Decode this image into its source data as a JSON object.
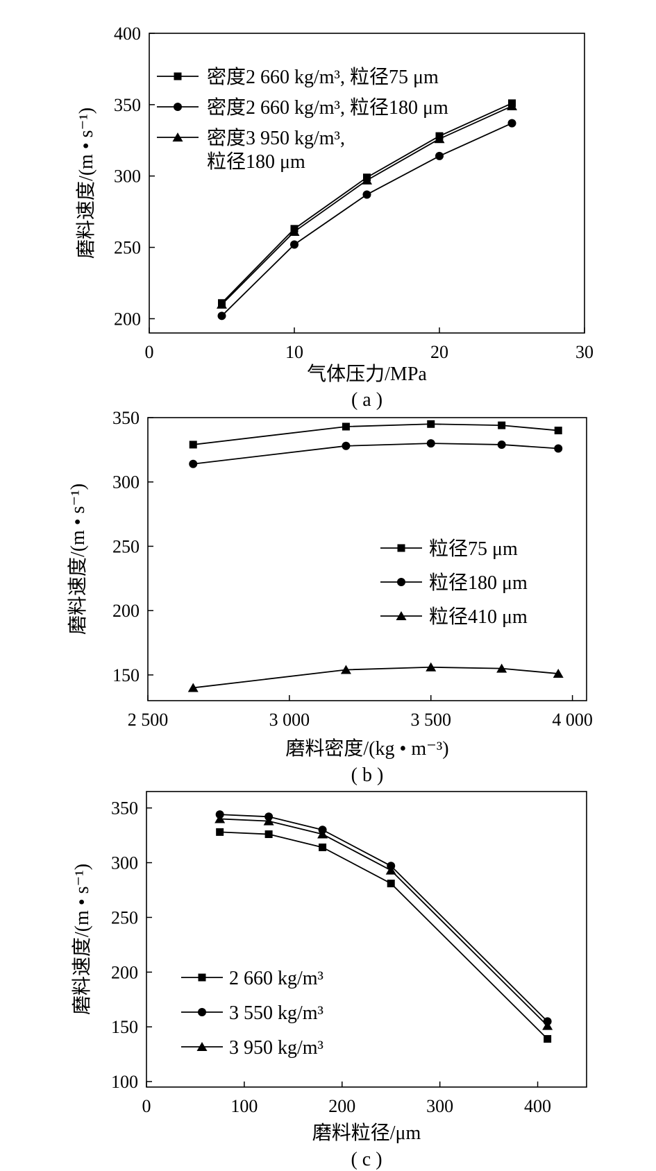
{
  "chart_data": [
    {
      "type": "line",
      "panel_label": "( a )",
      "xlabel": "气体压力/MPa",
      "ylabel": "磨料速度/(m • s⁻¹)",
      "xlim": [
        0,
        30
      ],
      "ylim": [
        190,
        400
      ],
      "xticks": [
        "0",
        "10",
        "20",
        "30"
      ],
      "yticks": [
        "200",
        "250",
        "300",
        "350",
        "400"
      ],
      "x": [
        5,
        10,
        15,
        20,
        25
      ],
      "series": [
        {
          "name": "密度2 660 kg/m³, 粒径75 μm",
          "marker": "square",
          "values": [
            211,
            263,
            299,
            328,
            351
          ]
        },
        {
          "name": "密度2 660 kg/m³, 粒径180 μm",
          "marker": "circle",
          "values": [
            202,
            252,
            287,
            314,
            337
          ]
        },
        {
          "name": "密度3 950 kg/m³, 粒径180 μm",
          "name_lines": [
            "密度3 950 kg/m³,",
            "粒径180 μm"
          ],
          "marker": "triangle",
          "values": [
            210,
            261,
            297,
            326,
            349
          ]
        }
      ],
      "legend_position": "top-left",
      "grid": false
    },
    {
      "type": "line",
      "panel_label": "( b )",
      "xlabel": "磨料密度/(kg • m⁻³)",
      "ylabel": "磨料速度/(m • s⁻¹)",
      "xlim": [
        2500,
        4050
      ],
      "ylim": [
        130,
        350
      ],
      "xticks": [
        "2 500",
        "3 000",
        "3 500",
        "4 000"
      ],
      "yticks": [
        "150",
        "200",
        "250",
        "300",
        "350"
      ],
      "x": [
        2660,
        3200,
        3500,
        3750,
        3950
      ],
      "series": [
        {
          "name": "粒径75 μm",
          "marker": "square",
          "values": [
            329,
            343,
            345,
            344,
            340
          ]
        },
        {
          "name": "粒径180 μm",
          "marker": "circle",
          "values": [
            314,
            328,
            330,
            329,
            326
          ]
        },
        {
          "name": "粒径410 μm",
          "marker": "triangle",
          "values": [
            140,
            154,
            156,
            155,
            151
          ]
        }
      ],
      "legend_position": "center-right",
      "grid": false
    },
    {
      "type": "line",
      "panel_label": "( c )",
      "xlabel": "磨料粒径/μm",
      "ylabel": "磨料速度/(m • s⁻¹)",
      "xlim": [
        0,
        450
      ],
      "ylim": [
        95,
        365
      ],
      "xticks": [
        "0",
        "100",
        "200",
        "300",
        "400"
      ],
      "yticks": [
        "100",
        "150",
        "200",
        "250",
        "300",
        "350"
      ],
      "x": [
        75,
        125,
        180,
        250,
        410
      ],
      "series": [
        {
          "name": "2 660 kg/m³",
          "marker": "square",
          "values": [
            328,
            326,
            314,
            281,
            139
          ]
        },
        {
          "name": "3 550 kg/m³",
          "marker": "circle",
          "values": [
            344,
            342,
            330,
            297,
            155
          ]
        },
        {
          "name": "3 950 kg/m³",
          "marker": "triangle",
          "values": [
            340,
            338,
            326,
            293,
            151
          ]
        }
      ],
      "legend_position": "bottom-left",
      "grid": false
    }
  ]
}
